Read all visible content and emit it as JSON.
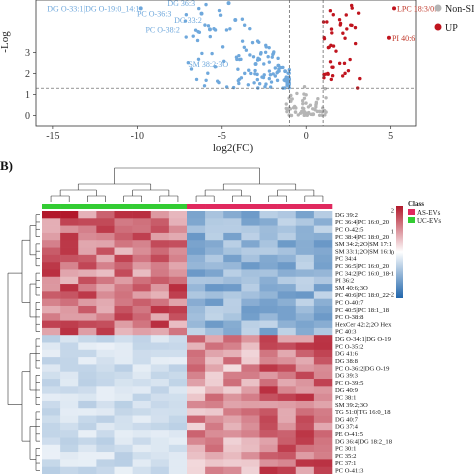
{
  "volcano": {
    "chart_data": {
      "type": "scatter",
      "xlabel": "log2(FC)",
      "ylabel": "-Log",
      "xlim": [
        -16,
        6.5
      ],
      "ylim": [
        -0.5,
        5.5
      ],
      "x_ticks": [
        -15,
        -10,
        -5,
        0,
        5
      ],
      "y_ticks": [
        0,
        1,
        2,
        3
      ],
      "legend": {
        "placement": "top-right",
        "entries": [
          "Non-SIG",
          "UP"
        ]
      },
      "annotations": [
        {
          "label": "DG O-33:1|DG O-19:0_14:1",
          "x": -12.6,
          "y": 5.1,
          "color": "#6fa8dc"
        },
        {
          "label": "DG 36:3",
          "x": -7.4,
          "y": 5.35,
          "color": "#6fa8dc"
        },
        {
          "label": "DG 33:2",
          "x": -7.0,
          "y": 4.55,
          "color": "#6fa8dc"
        },
        {
          "label": "PC O-36:3",
          "x": -9.0,
          "y": 4.85,
          "color": "#6fa8dc"
        },
        {
          "label": "PC O-38:2",
          "x": -8.5,
          "y": 4.1,
          "color": "#6fa8dc"
        },
        {
          "label": "SM 38:2;3O",
          "x": -5.8,
          "y": 2.45,
          "color": "#6fa8dc"
        },
        {
          "label": "LPC 18:3/0:0",
          "x": 5.2,
          "y": 5.1,
          "color": "#c0392b"
        },
        {
          "label": "PI 40:6",
          "x": 4.9,
          "y": 3.7,
          "color": "#c0392b"
        }
      ],
      "threshold": {
        "y": 1.3,
        "x": [
          -1,
          1
        ]
      }
    }
  },
  "panel_b": {
    "label": "B)"
  },
  "heatmap": {
    "chart_data": {
      "type": "heatmap",
      "n_columns": 16,
      "class_legend": {
        "title": "Class",
        "entries": [
          "AS-EVs",
          "UC-EVs"
        ],
        "colors": [
          "#e0295e",
          "#33cc33"
        ]
      },
      "colorbar": {
        "ticks": [
          "2",
          "1",
          "0",
          "-1",
          "-2"
        ],
        "high": "#b2182b",
        "low": "#2166ac"
      },
      "rows": [
        "DG 39:2",
        "PC 36:4|PC 16:0_20",
        "PC O-42:5",
        "PC 38:4|PC 18:0_20",
        "SM 34:2;2O|SM 17:1",
        "SM 33:1;2O|SM 16:1",
        "PC 34:4",
        "PC 36:5|PC 16:0_20",
        "PC 34:2|PC 16:0_18",
        "PI 36:2",
        "SM 40:6;3O",
        "PC 40:6|PC 18:0_22",
        "PC O-40:7",
        "PC 40:5|PC 18:1_18",
        "PC O-38:8",
        "HexCer 42:2;2O Hex",
        "PC 40:3",
        "DG O-34:1|DG O-19",
        "PC O-35:2",
        "DG 41:6",
        "DG 38:8",
        "PC O-36:2|DG O-19",
        "DG 39:3",
        "PC O-39:5",
        "DG 40:9",
        "PC 38:1",
        "SM 39:2;3O",
        "TG 51:0|TG 16:0_18",
        "DG 40:7",
        "DG 37:4",
        "PE O-41:5",
        "DG 36:4|DG 18:2_18",
        "PC 30:1",
        "PC 35:2",
        "PC 37:1",
        "PC O-41:3"
      ]
    }
  }
}
